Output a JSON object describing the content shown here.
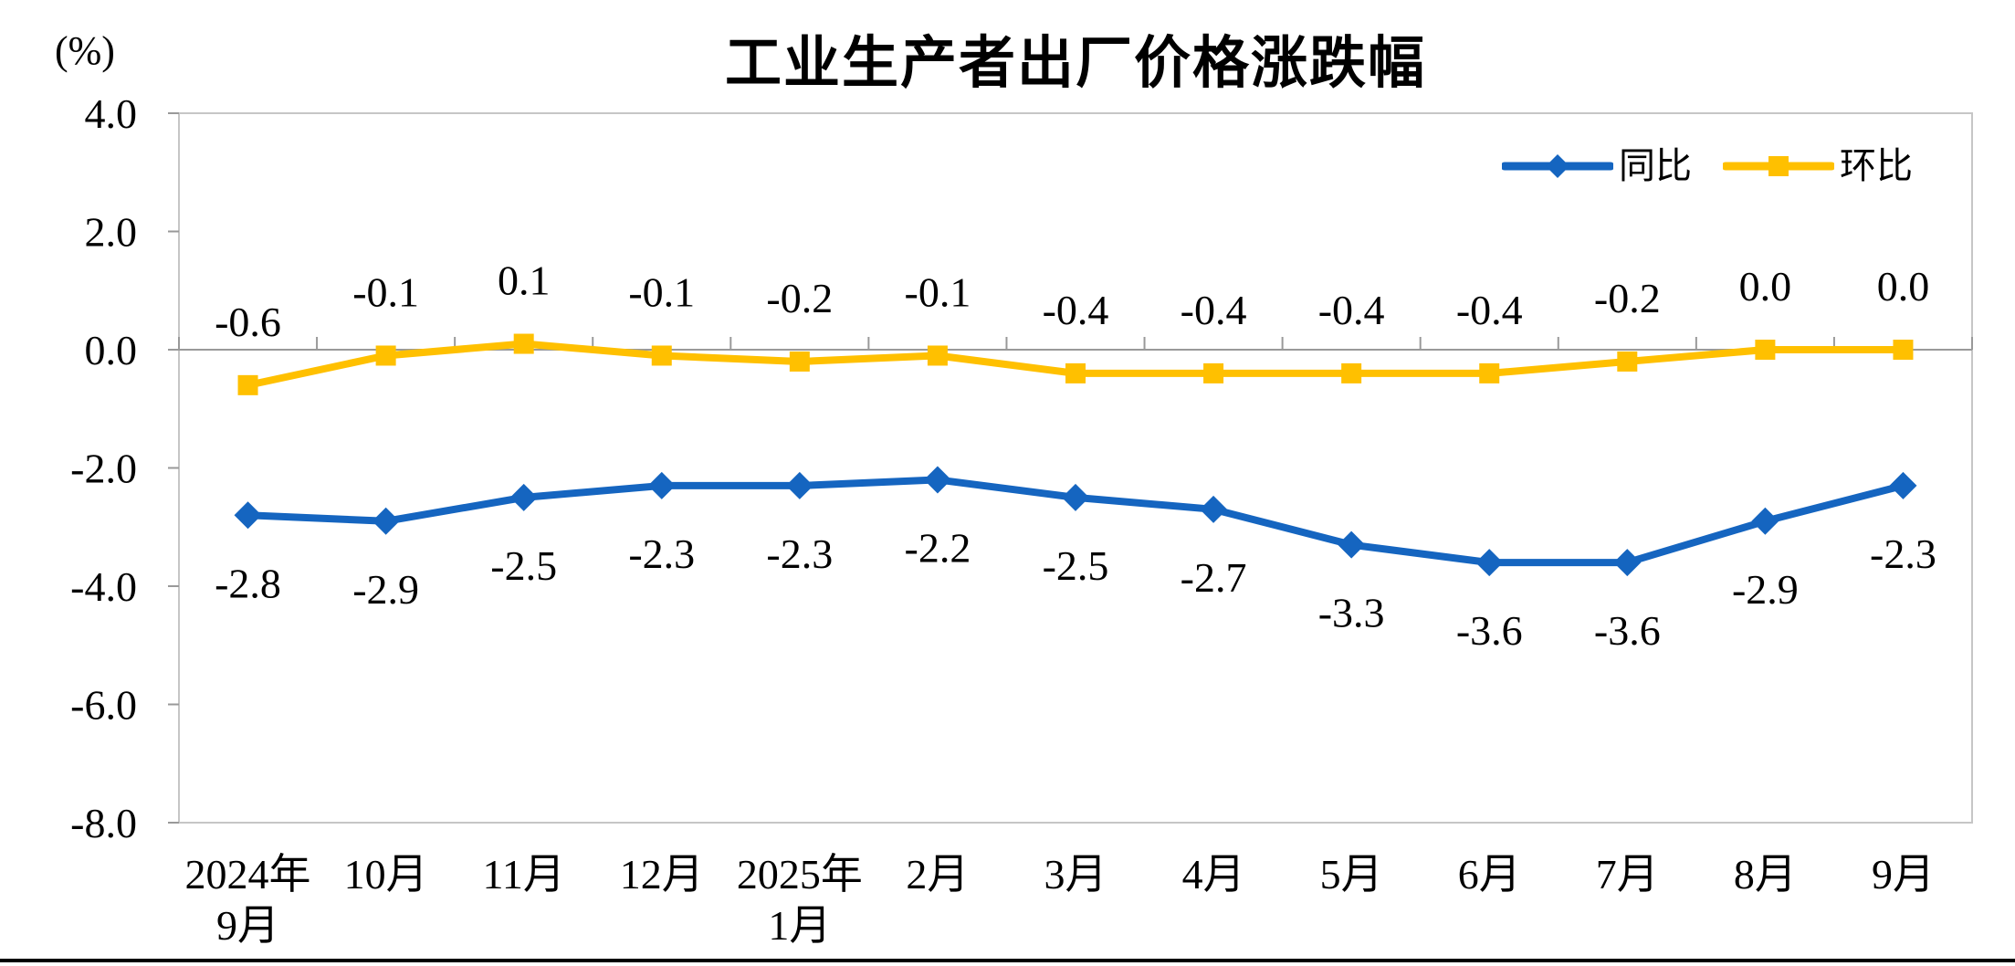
{
  "title": "工业生产者出厂价格涨跌幅",
  "chart_data": {
    "type": "line",
    "title": "工业生产者出厂价格涨跌幅",
    "ylabel": "(%)",
    "xlabel": "",
    "ylim": [
      -8.0,
      4.0
    ],
    "y_ticks": [
      "4.0",
      "2.0",
      "0.0",
      "-2.0",
      "-4.0",
      "-6.0",
      "-8.0"
    ],
    "grid": "zero-line-only",
    "legend_position": "top-right-inside",
    "categories": [
      [
        "2024年",
        "9月"
      ],
      [
        "10月"
      ],
      [
        "11月"
      ],
      [
        "12月"
      ],
      [
        "2025年",
        "1月"
      ],
      [
        "2月"
      ],
      [
        "3月"
      ],
      [
        "4月"
      ],
      [
        "5月"
      ],
      [
        "6月"
      ],
      [
        "7月"
      ],
      [
        "8月"
      ],
      [
        "9月"
      ]
    ],
    "series": [
      {
        "name": "同比",
        "color": "#1565C0",
        "marker": "diamond",
        "label_position": "below",
        "values": [
          -2.8,
          -2.9,
          -2.5,
          -2.3,
          -2.3,
          -2.2,
          -2.5,
          -2.7,
          -3.3,
          -3.6,
          -3.6,
          -2.9,
          -2.3
        ]
      },
      {
        "name": "环比",
        "color": "#FFC000",
        "marker": "square",
        "label_position": "above",
        "values": [
          -0.6,
          -0.1,
          0.1,
          -0.1,
          -0.2,
          -0.1,
          -0.4,
          -0.4,
          -0.4,
          -0.4,
          -0.2,
          0.0,
          0.0
        ]
      }
    ],
    "colors": {
      "plot_border": "#C6C6C6",
      "zero_axis": "#999999",
      "text": "#000000",
      "page_bottom_rule": "#000000"
    }
  }
}
